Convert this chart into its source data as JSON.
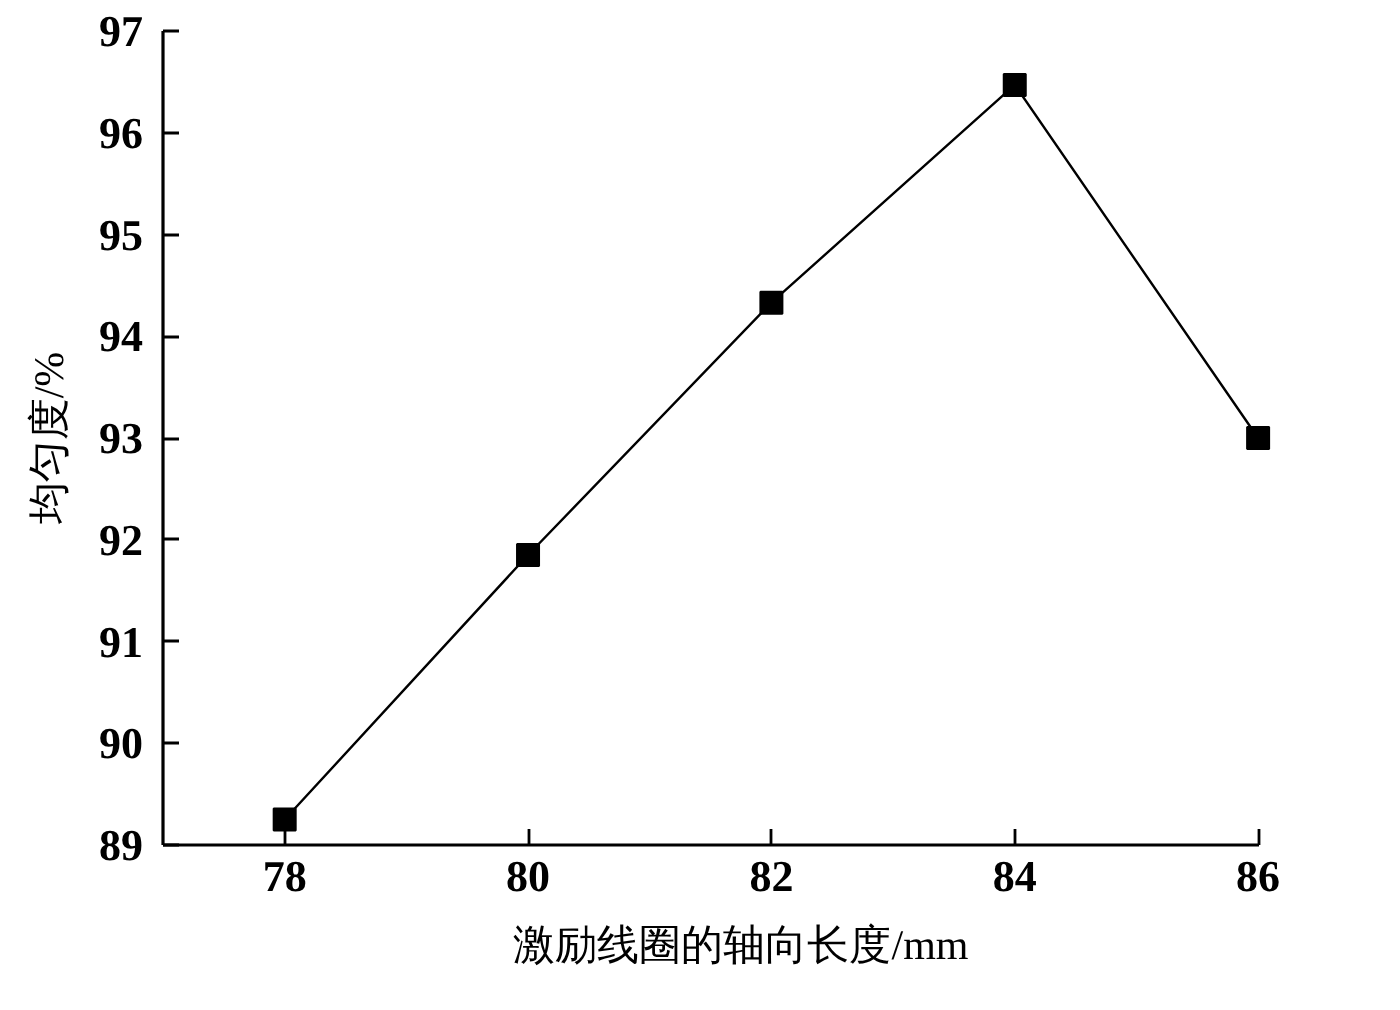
{
  "chart_data": {
    "type": "line",
    "xlabel": "激励线圈的轴向长度/mm",
    "ylabel": "均匀度/%",
    "x": [
      78,
      80,
      82,
      84,
      86
    ],
    "series": [
      {
        "color": "#000000",
        "values": [
          89.25,
          91.85,
          94.33,
          96.47,
          93.0
        ]
      }
    ],
    "xlim": [
      77,
      86
    ],
    "ylim": [
      89,
      97
    ],
    "xticks": [
      78,
      80,
      82,
      84,
      86
    ],
    "yticks": [
      89,
      90,
      91,
      92,
      93,
      94,
      95,
      96,
      97
    ],
    "marker": "square",
    "line_style": "solid"
  }
}
